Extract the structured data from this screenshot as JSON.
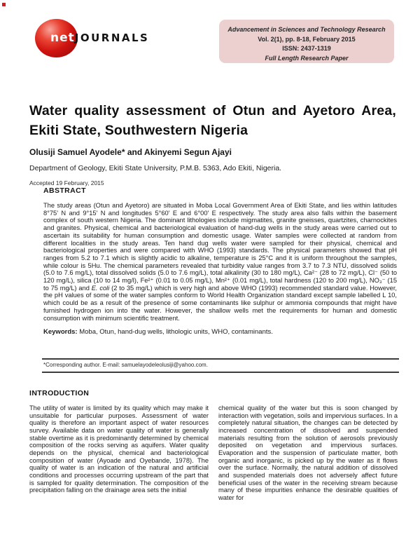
{
  "colors": {
    "accent_red": "#cf1410",
    "box_pink": "#ecd0d0"
  },
  "header": {
    "logo_net": "net",
    "logo_journals": "JOURNALS",
    "box": {
      "journal_name": "Advancement in Sciences and Technology Research",
      "volume_line": "Vol. 2(1), pp. 8-18, February 2015",
      "issn_line": "ISSN: 2437-1319",
      "paper_type": "Full Length Research Paper"
    }
  },
  "article": {
    "title": "Water quality assessment of Otun and Ayetoro Area, Ekiti State, Southwestern Nigeria",
    "authors": "Olusiji Samuel Ayodele* and Akinyemi Segun Ajayi",
    "affiliation": "Department of Geology, Ekiti State University, P.M.B. 5363, Ado Ekiti, Nigeria.",
    "accepted": "Accepted 19 February, 2015"
  },
  "abstract": {
    "heading": "ABSTRACT",
    "body_part1": "The study areas (Otun and Ayetoro) are situated in Moba Local Government Area of Ekiti State, and lies within latitudes 8°75' N and 9°15' N and longitudes 5°60' E and 6°00' E respectively. The study area also falls within the basement complex of south western Nigeria. The dominant lithologies include migmatites, granite gneisses, quartzites, charnockites and granites. Physical, chemical and bacteriological evaluation of hand-dug wells in the study areas were carried out to ascertain its suitability for human consumption and domestic usage. Water samples were collected at random from different localities in the study areas. Ten hand dug wells water were sampled for their physical, chemical and bacteriological properties and were compared with WHO (1993) standards. The physical parameters showed that pH ranges from 5.2 to 7.1 which is slightly acidic to alkaline, temperature is 25°C and it is uniform throughout the samples, while colour is 5Hu. The chemical parameters revealed that turbidity value ranges from 3.7 to 7.3 NTU, dissolved solids (5.0 to 7.6 mg/L), total dissolved solids (5.0 to 7.6 mg/L), total alkalinity (30 to 180 mg/L), Ca²⁻ (28 to 72 mg/L), Cl⁻ (50 to 120 mg/L), silica (10 to 14 mg/l), Fe²⁺ (0.01 to 0.05 mg/L), Mn²⁺ (0.01 mg/L), total hardness (120 to 200 mg/L), NO₃⁻ (15 to 75 mg/L) and ",
    "body_italic": "E. coli",
    "body_part2": " (2 to 35 mg/L) which is very high and above WHO (1993) recommended standard value. However, the pH values of some of the water samples conform to World Health Organization standard except sample labelled L 10, which could be as a result of the presence of some contaminants like sulphur or ammonia compounds that might have furnished hydrogen ion into the water. However, the shallow wells met the requirements for human and domestic consumption with minimum scientific treatment.",
    "keywords_label": "Keywords:",
    "keywords_text": "  Moba, Otun, hand-dug wells, lithologic units, WHO, contaminants.",
    "corresponding_note": "*Corresponding author. E-mail: samuelayodeleolusiji@yahoo.com."
  },
  "introduction": {
    "heading": "INTRODUCTION",
    "left_column": "The utility of water is limited by its quality which may make it unsuitable for particular purposes. Assessment of water quality is therefore an important aspect of water resources survey. Available data on water quality of water is generally stable overtime as it is predominantly determined by chemical composition of the rocks serving as aquifers. Water quality depends on the physical, chemical and bacteriological composition of water (Ayoade and Oyebande, 1978). The quality of water is an indication of the natural and artificial conditions and processes occurring upstream of the part that is sampled for quality determination. The composition of the precipitation falling on the drainage area sets the initial",
    "right_column": "chemical quality of the water but this is soon changed by interaction with vegetation, soils and impervious surfaces. In a completely natural situation, the changes can be detected by increased concentration of dissolved and suspended materials resulting from the solution of aerosols previously deposited on vegetation and impervious surfaces. Evaporation and the suspension of particulate matter, both organic and inorganic, is picked up by the water as it flows over the surface. Normally, the natural addition of dissolved and suspended materials does not adversely affect future beneficial uses of the water in the receiving stream because many of these impurities enhance the desirable qualities of water for"
  }
}
